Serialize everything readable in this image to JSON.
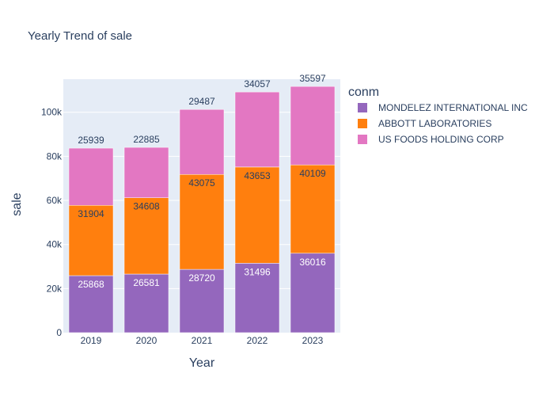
{
  "chart_data": {
    "type": "bar",
    "stacked": true,
    "title": "Yearly Trend of sale",
    "xlabel": "Year",
    "ylabel": "sale",
    "ylim": [
      0,
      115000
    ],
    "yticks": [
      0,
      20000,
      40000,
      60000,
      80000,
      100000
    ],
    "ytick_labels": [
      "0",
      "20k",
      "40k",
      "60k",
      "80k",
      "100k"
    ],
    "categories": [
      "2019",
      "2020",
      "2021",
      "2022",
      "2023"
    ],
    "legend_title": "conm",
    "legend_position": "right",
    "grid": true,
    "background": "#e5ecf6",
    "series": [
      {
        "name": "MONDELEZ INTERNATIONAL INC",
        "color": "#9467bd",
        "label_color": "#ffffff",
        "values": [
          25868,
          26581,
          28720,
          31496,
          36016
        ]
      },
      {
        "name": "ABBOTT LABORATORIES",
        "color": "#ff7f0e",
        "label_color": "#2a3f5f",
        "values": [
          31904,
          34608,
          43075,
          43653,
          40109
        ]
      },
      {
        "name": "US FOODS HOLDING CORP",
        "color": "#e377c2",
        "label_color": "#2a3f5f",
        "values": [
          25939,
          22885,
          29487,
          34057,
          35597
        ]
      }
    ]
  }
}
